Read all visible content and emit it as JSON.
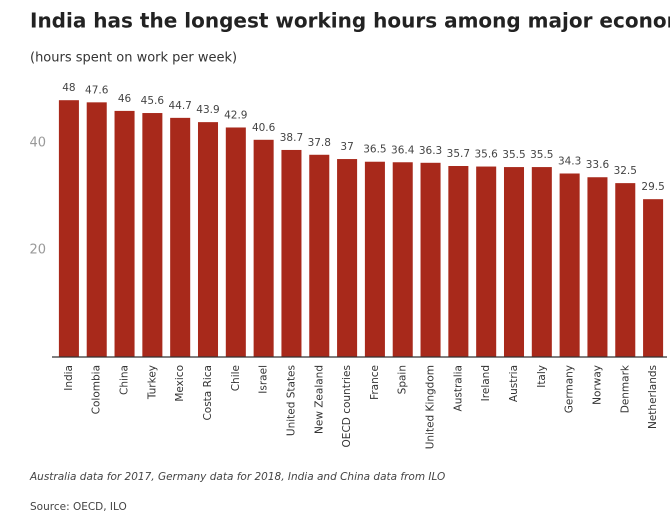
{
  "chart_data": {
    "type": "bar",
    "title": "India has the longest working hours among major economies",
    "subtitle": "(hours spent on work per week)",
    "categories": [
      "India",
      "Colombia",
      "China",
      "Turkey",
      "Mexico",
      "Costa Rica",
      "Chile",
      "Israel",
      "United States",
      "New Zealand",
      "OECD countries",
      "France",
      "Spain",
      "United Kingdom",
      "Australia",
      "Ireland",
      "Austria",
      "Italy",
      "Germany",
      "Norway",
      "Denmark",
      "Netherlands"
    ],
    "values": [
      48,
      47.6,
      46,
      45.6,
      44.7,
      43.9,
      42.9,
      40.6,
      38.7,
      37.8,
      37,
      36.5,
      36.4,
      36.3,
      35.7,
      35.6,
      35.5,
      35.5,
      34.3,
      33.6,
      32.5,
      29.5
    ],
    "color": "#a8291b",
    "ylim": [
      0,
      50
    ],
    "yticks": [
      20,
      40
    ],
    "grid": false,
    "note": "Australia data for 2017, Germany data for 2018, India and China data from ILO",
    "source": "Source: OECD, ILO"
  }
}
